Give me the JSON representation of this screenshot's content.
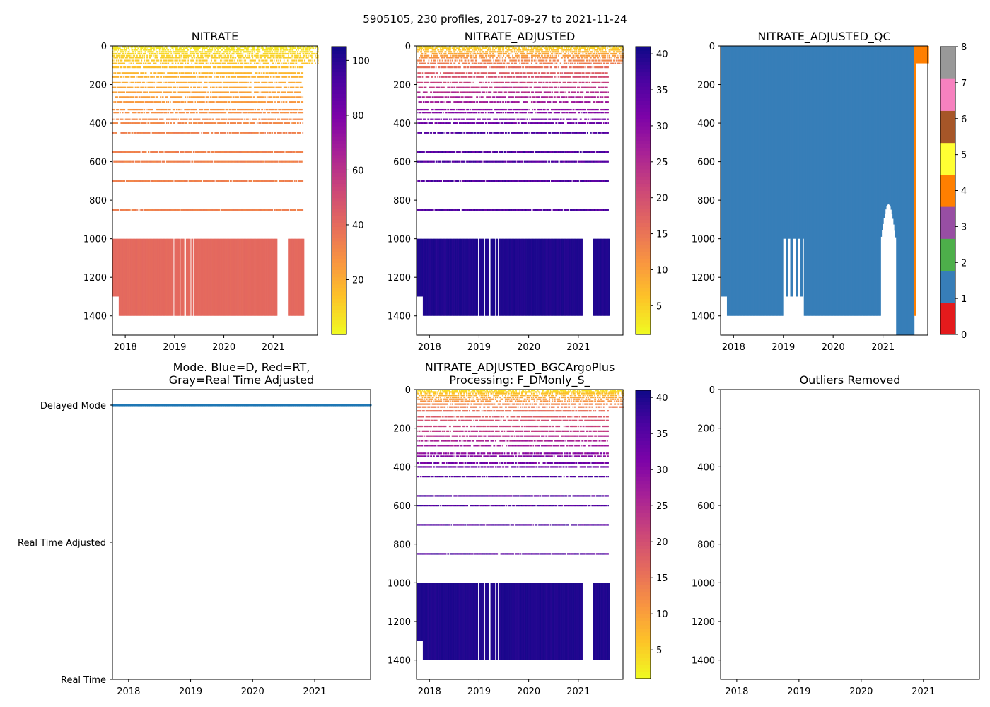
{
  "figure_title": "5905105, 230 profiles, 2017-09-27 to 2021-11-24",
  "colors": {
    "qc_blue": "#377eb8",
    "qc_orange": "#ff7f00",
    "mode_blue": "#1f77b4",
    "nitrate_red": "#e0675d",
    "adjusted_deep": "#2a0c96"
  },
  "chart_data": [
    {
      "id": "nitrate",
      "type": "heatmap",
      "title": "NITRATE",
      "xlabel": "",
      "ylabel": "",
      "x_ticks": [
        "2018",
        "2019",
        "2020",
        "2021"
      ],
      "xlim": [
        2017.74,
        2021.9
      ],
      "y_ticks": [
        "0",
        "200",
        "400",
        "600",
        "800",
        "1000",
        "1200",
        "1400"
      ],
      "ylim": [
        1500,
        0
      ],
      "colormap": "plasma_r",
      "colorbar": {
        "range": [
          0,
          105
        ],
        "ticks": [
          "20",
          "40",
          "60",
          "80",
          "100"
        ]
      },
      "shallow_range": [
        1,
        35
      ],
      "deep_value": 40,
      "deep_block": {
        "start": 1000,
        "end": 1400
      }
    },
    {
      "id": "nitrate-adjusted",
      "type": "heatmap",
      "title": "NITRATE_ADJUSTED",
      "xlabel": "",
      "ylabel": "",
      "x_ticks": [
        "2018",
        "2019",
        "2020",
        "2021"
      ],
      "xlim": [
        2017.74,
        2021.9
      ],
      "y_ticks": [
        "0",
        "200",
        "400",
        "600",
        "800",
        "1000",
        "1200",
        "1400"
      ],
      "ylim": [
        1500,
        0
      ],
      "colormap": "plasma_r",
      "colorbar": {
        "range": [
          1,
          41
        ],
        "ticks": [
          "5",
          "10",
          "15",
          "20",
          "25",
          "30",
          "35",
          "40"
        ]
      },
      "shallow_range": [
        1,
        38
      ],
      "deep_value": 39.5,
      "deep_block": {
        "start": 1000,
        "end": 1400
      }
    },
    {
      "id": "nitrate-adjusted-qc",
      "type": "heatmap",
      "title": "NITRATE_ADJUSTED_QC",
      "xlabel": "",
      "ylabel": "",
      "x_ticks": [
        "2018",
        "2019",
        "2020",
        "2021"
      ],
      "xlim": [
        2017.74,
        2021.9
      ],
      "y_ticks": [
        "0",
        "200",
        "400",
        "600",
        "800",
        "1000",
        "1200",
        "1400"
      ],
      "ylim": [
        1500,
        0
      ],
      "colorbar": {
        "range": [
          0,
          8
        ],
        "ticks": [
          "0",
          "1",
          "2",
          "3",
          "4",
          "5",
          "6",
          "7",
          "8"
        ],
        "categories": [
          {
            "flag": 0,
            "color": "#e41a1c"
          },
          {
            "flag": 1,
            "color": "#377eb8"
          },
          {
            "flag": 2,
            "color": "#4daf4a"
          },
          {
            "flag": 3,
            "color": "#984ea3"
          },
          {
            "flag": 4,
            "color": "#ff7f00"
          },
          {
            "flag": 5,
            "color": "#ffff33"
          },
          {
            "flag": 6,
            "color": "#a65628"
          },
          {
            "flag": 7,
            "color": "#f781bf"
          },
          {
            "flag": 8,
            "color": "#999999"
          }
        ]
      },
      "dominant_flag": 1,
      "recent_flag": 4
    },
    {
      "id": "mode",
      "type": "scatter",
      "title": "Mode. Blue=D, Red=RT,",
      "title_line2": "Gray=Real Time Adjusted",
      "xlabel": "",
      "ylabel": "",
      "x_ticks": [
        "2018",
        "2019",
        "2020",
        "2021"
      ],
      "xlim": [
        2017.74,
        2021.9
      ],
      "y_categories": [
        "Delayed Mode",
        "Real Time Adjusted",
        "Real Time"
      ],
      "series": [
        {
          "name": "Delayed Mode",
          "category": "Delayed Mode",
          "count": 230
        }
      ]
    },
    {
      "id": "bgcargoplus",
      "type": "heatmap",
      "title": "NITRATE_ADJUSTED_BGCArgoPlus",
      "title_line2": "Processing: F_DMonly_S_",
      "xlabel": "",
      "ylabel": "",
      "x_ticks": [
        "2018",
        "2019",
        "2020",
        "2021"
      ],
      "xlim": [
        2017.74,
        2021.9
      ],
      "y_ticks": [
        "0",
        "200",
        "400",
        "600",
        "800",
        "1000",
        "1200",
        "1400"
      ],
      "ylim": [
        1500,
        0
      ],
      "colormap": "plasma_r",
      "colorbar": {
        "range": [
          1,
          41
        ],
        "ticks": [
          "5",
          "10",
          "15",
          "20",
          "25",
          "30",
          "35",
          "40"
        ]
      },
      "shallow_range": [
        1,
        38
      ],
      "deep_value": 39.5,
      "deep_block": {
        "start": 1000,
        "end": 1400
      }
    },
    {
      "id": "outliers",
      "type": "scatter",
      "title": "Outliers Removed",
      "xlabel": "",
      "ylabel": "",
      "x_ticks": [
        "2018",
        "2019",
        "2020",
        "2021"
      ],
      "xlim": [
        2017.74,
        2021.9
      ],
      "y_ticks": [
        "0",
        "200",
        "400",
        "600",
        "800",
        "1000",
        "1200",
        "1400"
      ],
      "ylim": [
        1500,
        0
      ],
      "series": []
    }
  ]
}
